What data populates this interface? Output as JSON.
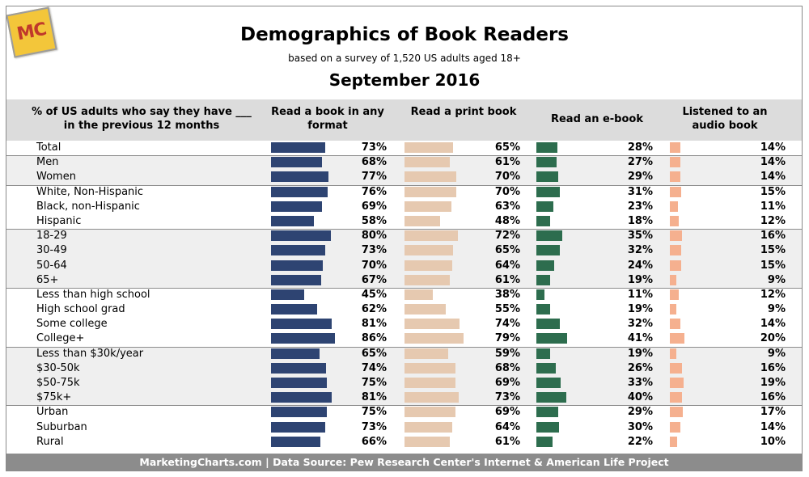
{
  "logo_text": "MC",
  "title": "Demographics of Book Readers",
  "subtitle": "based on a survey of 1,520 US adults aged 18+",
  "date_label": "September 2016",
  "footer": "MarketingCharts.com | Data Source: Pew Research Center's Internet & American Life Project",
  "colors": {
    "any_format": "#2e4472",
    "print": "#e6c9b0",
    "ebook": "#2d6d4e",
    "audio": "#f5b08f",
    "header_bg": "#dcdcdc",
    "shade": "#efefef"
  },
  "chart_data": {
    "type": "table",
    "title": "Demographics of Book Readers",
    "subtitle": "based on a survey of 1,520 US adults aged 18+",
    "row_header": "% of US adults who say they have ___ in the previous 12 months",
    "columns": [
      {
        "key": "any",
        "label": "Read a book in any format"
      },
      {
        "key": "print",
        "label": "Read a print book"
      },
      {
        "key": "ebook",
        "label": "Read an e-book"
      },
      {
        "key": "audio",
        "label": "Listened to an audio book"
      }
    ],
    "groups": [
      {
        "shaded": false,
        "rows": [
          {
            "label": "Total",
            "any": 73,
            "print": 65,
            "ebook": 28,
            "audio": 14
          }
        ]
      },
      {
        "shaded": true,
        "rows": [
          {
            "label": "Men",
            "any": 68,
            "print": 61,
            "ebook": 27,
            "audio": 14
          },
          {
            "label": "Women",
            "any": 77,
            "print": 70,
            "ebook": 29,
            "audio": 14
          }
        ]
      },
      {
        "shaded": false,
        "rows": [
          {
            "label": "White, Non-Hispanic",
            "any": 76,
            "print": 70,
            "ebook": 31,
            "audio": 15
          },
          {
            "label": "Black, non-Hispanic",
            "any": 69,
            "print": 63,
            "ebook": 23,
            "audio": 11
          },
          {
            "label": "Hispanic",
            "any": 58,
            "print": 48,
            "ebook": 18,
            "audio": 12
          }
        ]
      },
      {
        "shaded": true,
        "rows": [
          {
            "label": "18-29",
            "any": 80,
            "print": 72,
            "ebook": 35,
            "audio": 16
          },
          {
            "label": "30-49",
            "any": 73,
            "print": 65,
            "ebook": 32,
            "audio": 15
          },
          {
            "label": "50-64",
            "any": 70,
            "print": 64,
            "ebook": 24,
            "audio": 15
          },
          {
            "label": "65+",
            "any": 67,
            "print": 61,
            "ebook": 19,
            "audio": 9
          }
        ]
      },
      {
        "shaded": false,
        "rows": [
          {
            "label": "Less than high school",
            "any": 45,
            "print": 38,
            "ebook": 11,
            "audio": 12
          },
          {
            "label": "High school grad",
            "any": 62,
            "print": 55,
            "ebook": 19,
            "audio": 9
          },
          {
            "label": "Some college",
            "any": 81,
            "print": 74,
            "ebook": 32,
            "audio": 14
          },
          {
            "label": "College+",
            "any": 86,
            "print": 79,
            "ebook": 41,
            "audio": 20
          }
        ]
      },
      {
        "shaded": true,
        "rows": [
          {
            "label": "Less than $30k/year",
            "any": 65,
            "print": 59,
            "ebook": 19,
            "audio": 9
          },
          {
            "label": "$30-50k",
            "any": 74,
            "print": 68,
            "ebook": 26,
            "audio": 16
          },
          {
            "label": "$50-75k",
            "any": 75,
            "print": 69,
            "ebook": 33,
            "audio": 19
          },
          {
            "label": "$75k+",
            "any": 81,
            "print": 73,
            "ebook": 40,
            "audio": 16
          }
        ]
      },
      {
        "shaded": false,
        "rows": [
          {
            "label": "Urban",
            "any": 75,
            "print": 69,
            "ebook": 29,
            "audio": 17
          },
          {
            "label": "Suburban",
            "any": 73,
            "print": 64,
            "ebook": 30,
            "audio": 14
          },
          {
            "label": "Rural",
            "any": 66,
            "print": 61,
            "ebook": 22,
            "audio": 10
          }
        ]
      }
    ],
    "value_suffix": "%"
  }
}
